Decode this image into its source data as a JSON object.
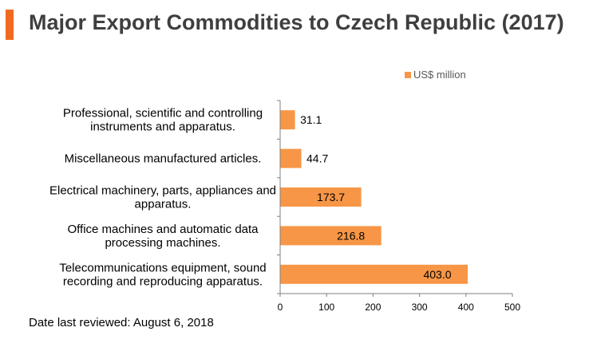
{
  "title": "Major Export Commodities to Czech Republic (2017)",
  "footnote": "Date last reviewed: August 6, 2018",
  "colors": {
    "accent": "#f26a21",
    "bar": "#f79646"
  },
  "chart_data": {
    "type": "bar",
    "orientation": "horizontal",
    "categories": [
      [
        "Professional, scientific and controlling",
        "instruments and apparatus."
      ],
      [
        "Miscellaneous manufactured articles."
      ],
      [
        "Electrical machinery, parts, appliances and",
        "apparatus."
      ],
      [
        "Office machines and automatic data",
        "processing machines."
      ],
      [
        "Telecommunications equipment, sound",
        "recording and reproducing apparatus."
      ]
    ],
    "series": [
      {
        "name": "US$ million",
        "values": [
          31.1,
          44.7,
          173.7,
          216.8,
          403.0
        ]
      }
    ],
    "data_labels": [
      "31.1",
      "44.7",
      "173.7",
      "216.8",
      "403.0"
    ],
    "xlim": [
      0,
      500
    ],
    "xticks": [
      0,
      100,
      200,
      300,
      400,
      500
    ],
    "legend_position": "top-right",
    "grid": false
  }
}
